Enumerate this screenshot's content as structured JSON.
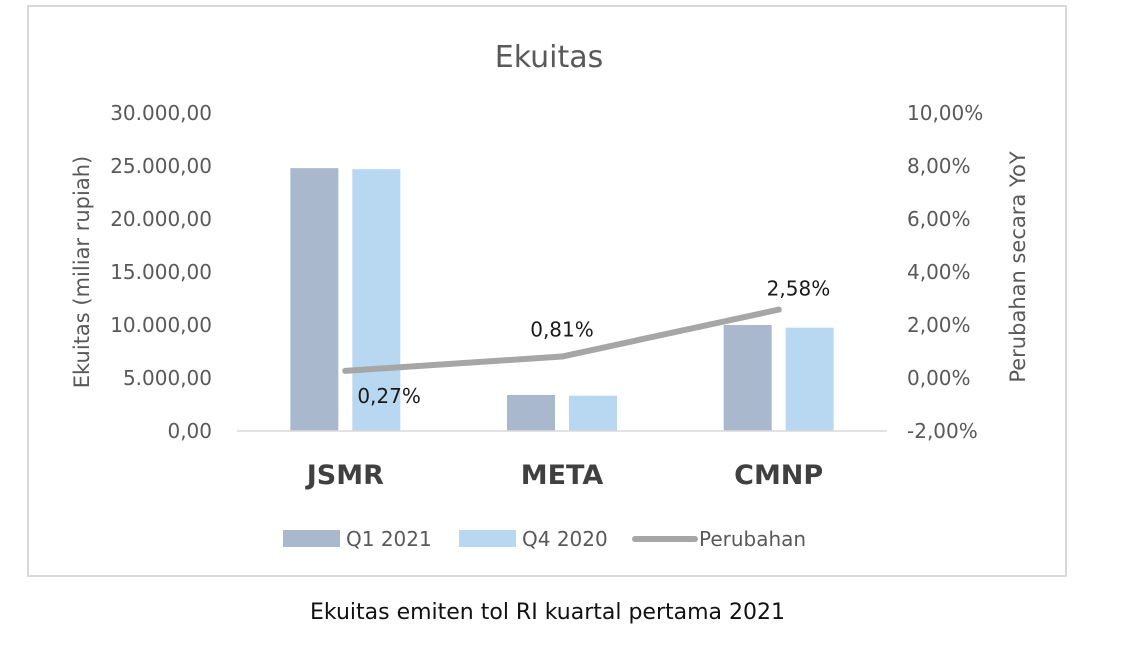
{
  "caption": "Ekuitas emiten tol RI kuartal pertama 2021",
  "chart_data": {
    "type": "bar",
    "title": "Ekuitas",
    "categories": [
      "JSMR",
      "META",
      "CMNP"
    ],
    "series": [
      {
        "name": "Q1 2021",
        "kind": "bar",
        "axis": "left",
        "color": "#aab8ce",
        "values": [
          24800,
          3400,
          10000
        ]
      },
      {
        "name": "Q4 2020",
        "kind": "bar",
        "axis": "left",
        "color": "#b8d7f0",
        "values": [
          24700,
          3330,
          9750
        ]
      },
      {
        "name": "Perubahan",
        "kind": "line",
        "axis": "right",
        "color": "#a6a6a6",
        "values": [
          0.27,
          0.81,
          2.58
        ],
        "labels": [
          "0,27%",
          "0,81%",
          "2,58%"
        ]
      }
    ],
    "ylabel": "Ekuitas (miliar rupiah)",
    "ylim": [
      0,
      30000
    ],
    "yticks": [
      "30.000,00",
      "25.000,00",
      "20.000,00",
      "15.000,00",
      "10.000,00",
      "5.000,00",
      "0,00"
    ],
    "y2label": "Perubahan secara YoY",
    "y2lim": [
      -2,
      10
    ],
    "y2ticks": [
      "10,00%",
      "8,00%",
      "6,00%",
      "4,00%",
      "2,00%",
      "0,00%",
      "-2,00%"
    ],
    "legend_position": "bottom"
  }
}
